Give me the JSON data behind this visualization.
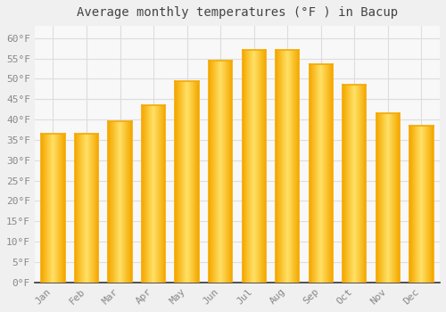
{
  "title": "Average monthly temperatures (°F ) in Bacup",
  "months": [
    "Jan",
    "Feb",
    "Mar",
    "Apr",
    "May",
    "Jun",
    "Jul",
    "Aug",
    "Sep",
    "Oct",
    "Nov",
    "Dec"
  ],
  "values": [
    36.5,
    36.5,
    39.5,
    43.5,
    49.5,
    54.5,
    57.0,
    57.0,
    53.5,
    48.5,
    41.5,
    38.5
  ],
  "bar_color_center": "#FFE066",
  "bar_color_edge": "#F5A800",
  "background_color": "#F0F0F0",
  "plot_bg_color": "#F8F8F8",
  "grid_color": "#DDDDDD",
  "tick_label_color": "#888888",
  "title_color": "#444444",
  "spine_color": "#888888",
  "ylim": [
    0,
    63
  ],
  "yticks": [
    0,
    5,
    10,
    15,
    20,
    25,
    30,
    35,
    40,
    45,
    50,
    55,
    60
  ],
  "ytick_labels": [
    "0°F",
    "5°F",
    "10°F",
    "15°F",
    "20°F",
    "25°F",
    "30°F",
    "35°F",
    "40°F",
    "45°F",
    "50°F",
    "55°F",
    "60°F"
  ],
  "title_fontsize": 10,
  "tick_fontsize": 8,
  "bar_width": 0.7
}
